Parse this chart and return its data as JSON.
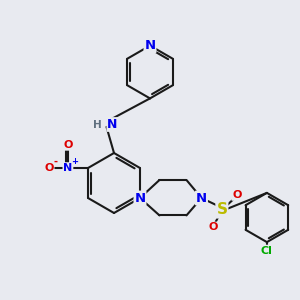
{
  "bg_color": "#e8eaf0",
  "bond_color": "#1a1a1a",
  "bond_width": 1.5,
  "atom_colors": {
    "N": "#0000ee",
    "O": "#dd0000",
    "S": "#bbbb00",
    "Cl": "#00aa00",
    "H": "#607080",
    "C": "#1a1a1a"
  },
  "font_size": 8.0
}
